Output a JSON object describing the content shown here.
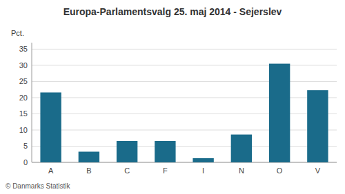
{
  "chart_data": {
    "type": "bar",
    "title": "Europa-Parlamentsvalg 25. maj 2014 - Sejerslev",
    "ylabel": "Pct.",
    "annotations": [
      "© Danmarks Statistik"
    ],
    "categories": [
      "A",
      "B",
      "C",
      "F",
      "I",
      "N",
      "O",
      "V"
    ],
    "values": [
      21.6,
      3.3,
      6.6,
      6.6,
      1.3,
      8.6,
      30.5,
      22.3
    ],
    "color": "#1a6b8a",
    "ylim": [
      0,
      37
    ],
    "yticks": [
      0,
      5,
      10,
      15,
      20,
      25,
      30,
      35
    ],
    "grid": true
  }
}
